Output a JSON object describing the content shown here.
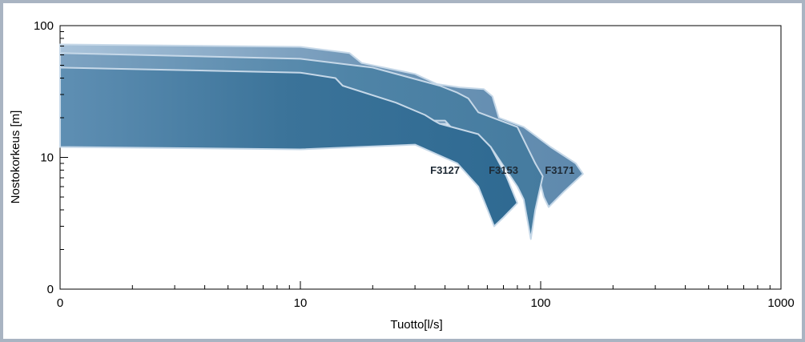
{
  "chart_data": {
    "type": "area",
    "xlabel": "Tuotto[l/s]",
    "ylabel": "Nostokorkeus [m]",
    "x_ticks": [
      {
        "value": 1,
        "label": "0"
      },
      {
        "value": 10,
        "label": "10"
      },
      {
        "value": 100,
        "label": "100"
      },
      {
        "value": 1000,
        "label": "1000"
      }
    ],
    "y_ticks": [
      {
        "value": 1,
        "label": "0"
      },
      {
        "value": 10,
        "label": "10"
      },
      {
        "value": 100,
        "label": "100"
      }
    ],
    "xscale": "log",
    "yscale": "log",
    "xlim": [
      1,
      1000
    ],
    "ylim": [
      1,
      100
    ],
    "grid": false,
    "series": [
      {
        "name": "F3171",
        "color": "#6a93b4",
        "label_at": [
          120,
          7.5
        ],
        "upper": [
          [
            1,
            72
          ],
          [
            10,
            69
          ],
          [
            16,
            62
          ],
          [
            18,
            52
          ],
          [
            30,
            43
          ],
          [
            37,
            36
          ],
          [
            46,
            34
          ],
          [
            58,
            33
          ],
          [
            63,
            29
          ],
          [
            67,
            20
          ],
          [
            85,
            17
          ],
          [
            110,
            12
          ],
          [
            140,
            9
          ],
          [
            150,
            7.5
          ]
        ],
        "lower": [
          [
            150,
            7.5
          ],
          [
            125,
            5.5
          ],
          [
            108,
            4.2
          ]
        ],
        "inner_notch": [
          [
            108,
            4.2
          ],
          [
            103,
            5
          ],
          [
            95,
            9
          ],
          [
            78,
            14
          ],
          [
            66,
            18
          ]
        ]
      },
      {
        "name": "F3153",
        "color": "#4e83a6",
        "label_at": [
          70,
          7.5
        ],
        "upper": [
          [
            1,
            62
          ],
          [
            10,
            56
          ],
          [
            20,
            48
          ],
          [
            38,
            35
          ],
          [
            45,
            31
          ],
          [
            50,
            28
          ],
          [
            55,
            22
          ],
          [
            80,
            17
          ],
          [
            95,
            9
          ],
          [
            102,
            7.2
          ]
        ],
        "lower": [
          [
            102,
            7.2
          ],
          [
            95,
            4
          ],
          [
            91,
            2.4
          ]
        ],
        "inner_notch": [
          [
            91,
            2.4
          ],
          [
            85,
            4.8
          ],
          [
            80,
            6
          ],
          [
            62,
            12
          ],
          [
            45,
            15
          ],
          [
            40,
            19
          ]
        ]
      },
      {
        "name": "F3127",
        "color": "#3b7399",
        "label_at": [
          40,
          7.5
        ],
        "upper": [
          [
            1,
            48
          ],
          [
            10,
            44
          ],
          [
            14,
            40
          ],
          [
            15,
            35
          ],
          [
            25,
            26
          ],
          [
            33,
            21
          ],
          [
            36,
            19
          ],
          [
            38,
            18
          ],
          [
            55,
            15
          ],
          [
            62,
            12
          ],
          [
            72,
            7.2
          ],
          [
            80,
            4.5
          ]
        ],
        "lower": [
          [
            80,
            4.5
          ],
          [
            70,
            3.5
          ],
          [
            64,
            3
          ],
          [
            55,
            6
          ],
          [
            45,
            9
          ],
          [
            30,
            12.5
          ],
          [
            10,
            11.5
          ],
          [
            1,
            12
          ]
        ]
      }
    ]
  }
}
